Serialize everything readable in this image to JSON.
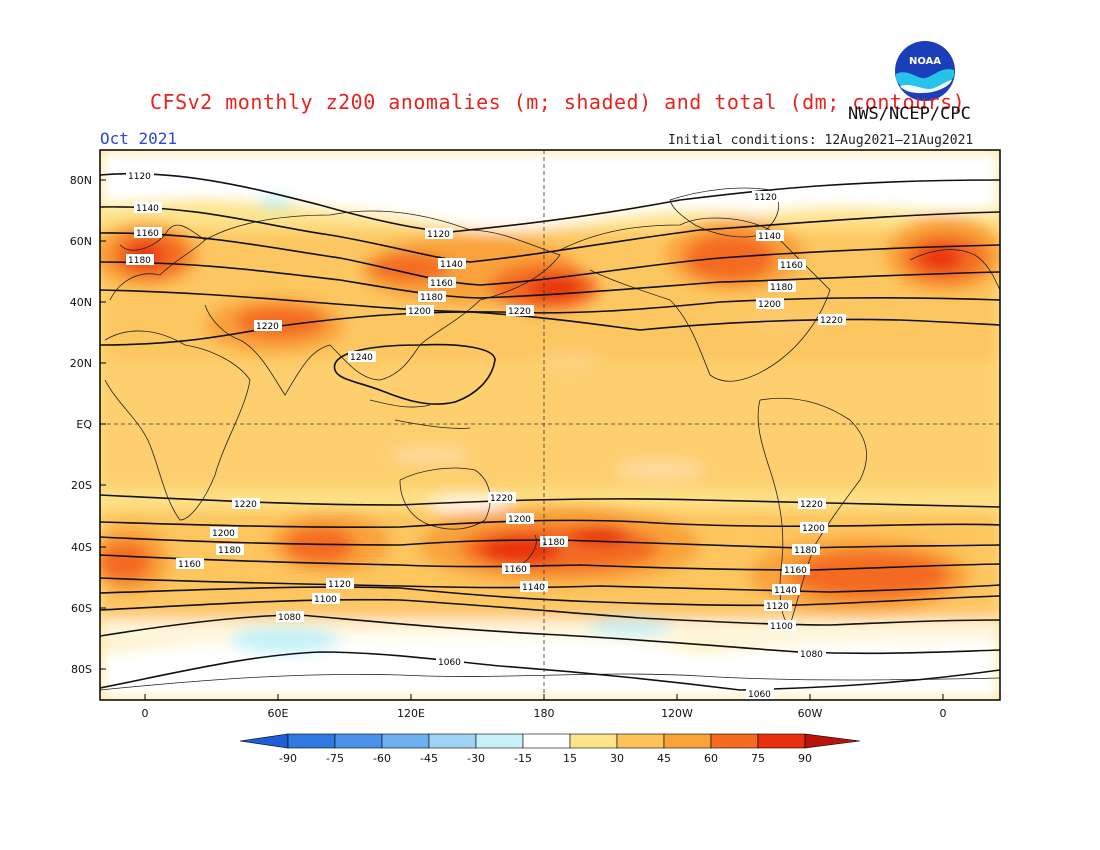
{
  "header": {
    "title": "CFSv2 monthly z200 anomalies (m; shaded) and total (dm; contours)",
    "agency": "NWS/NCEP/CPC",
    "month": "Oct 2021",
    "initial_conditions": "Initial conditions: 12Aug2021–21Aug2021",
    "logo_text": "NOAA"
  },
  "map": {
    "lat_labels": [
      "80N",
      "60N",
      "40N",
      "20N",
      "EQ",
      "20S",
      "40S",
      "60S",
      "80S"
    ],
    "lon_labels": [
      "0",
      "60E",
      "120E",
      "180",
      "120W",
      "60W",
      "0"
    ],
    "contour_labels": [
      "1060",
      "1080",
      "1100",
      "1120",
      "1140",
      "1160",
      "1180",
      "1200",
      "1220",
      "1240"
    ]
  },
  "colorbar": {
    "tick_labels": [
      "-90",
      "-75",
      "-60",
      "-45",
      "-30",
      "-15",
      "15",
      "30",
      "45",
      "60",
      "75",
      "90"
    ],
    "colors": [
      "#1e5fd6",
      "#2f7ae0",
      "#4a92ea",
      "#6fb0f0",
      "#9fd3f6",
      "#c6f2f8",
      "#ffffff",
      "#fde38a",
      "#fdc25a",
      "#f9a23a",
      "#f46b21",
      "#e8300f",
      "#b81409"
    ]
  }
}
